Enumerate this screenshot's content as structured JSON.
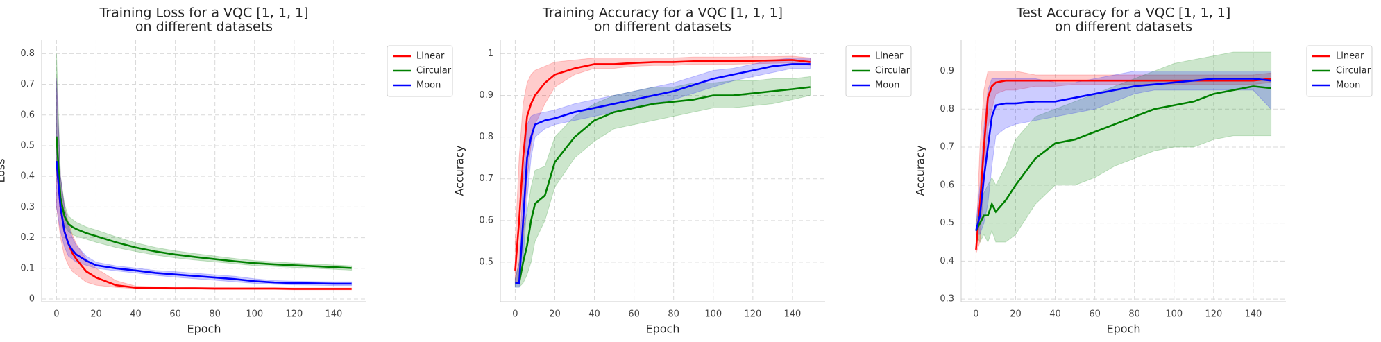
{
  "chart_data": [
    {
      "type": "line",
      "title": [
        "Training Loss for a VQC [1, 1, 1]",
        "on different datasets"
      ],
      "xlabel": "Epoch",
      "ylabel": "Loss",
      "x": [
        0,
        2,
        4,
        6,
        8,
        10,
        15,
        20,
        30,
        40,
        50,
        60,
        70,
        80,
        90,
        100,
        110,
        120,
        130,
        140,
        149
      ],
      "xlim": [
        -7.5,
        156.5
      ],
      "xticks": [
        0,
        20,
        40,
        60,
        80,
        100,
        120,
        140
      ],
      "ylim": [
        -0.009,
        0.846
      ],
      "yticks": [
        0.0,
        0.1,
        0.2,
        0.3,
        0.4,
        0.5,
        0.6,
        0.7,
        0.8
      ],
      "grid": true,
      "legend": "outside",
      "series": [
        {
          "name": "Linear",
          "color": "#ff0000",
          "values": [
            0.45,
            0.3,
            0.22,
            0.18,
            0.15,
            0.13,
            0.09,
            0.07,
            0.045,
            0.037,
            0.036,
            0.035,
            0.035,
            0.034,
            0.034,
            0.034,
            0.034,
            0.033,
            0.033,
            0.033,
            0.033
          ],
          "lower": [
            0.3,
            0.2,
            0.14,
            0.11,
            0.09,
            0.08,
            0.055,
            0.045,
            0.038,
            0.034,
            0.033,
            0.032,
            0.032,
            0.031,
            0.031,
            0.031,
            0.031,
            0.03,
            0.03,
            0.03,
            0.03
          ],
          "upper": [
            0.72,
            0.4,
            0.3,
            0.25,
            0.21,
            0.18,
            0.13,
            0.1,
            0.06,
            0.042,
            0.04,
            0.039,
            0.038,
            0.038,
            0.037,
            0.037,
            0.037,
            0.036,
            0.036,
            0.036,
            0.036
          ]
        },
        {
          "name": "Circular",
          "color": "#008000",
          "values": [
            0.53,
            0.33,
            0.27,
            0.245,
            0.235,
            0.228,
            0.215,
            0.205,
            0.185,
            0.168,
            0.155,
            0.145,
            0.137,
            0.13,
            0.123,
            0.117,
            0.113,
            0.11,
            0.107,
            0.104,
            0.101
          ],
          "lower": [
            0.45,
            0.28,
            0.24,
            0.22,
            0.21,
            0.205,
            0.195,
            0.185,
            0.168,
            0.155,
            0.143,
            0.134,
            0.127,
            0.121,
            0.115,
            0.109,
            0.106,
            0.103,
            0.1,
            0.097,
            0.094
          ],
          "upper": [
            0.8,
            0.4,
            0.31,
            0.27,
            0.26,
            0.25,
            0.235,
            0.225,
            0.203,
            0.183,
            0.168,
            0.157,
            0.148,
            0.14,
            0.132,
            0.125,
            0.121,
            0.117,
            0.114,
            0.111,
            0.108
          ]
        },
        {
          "name": "Moon",
          "color": "#0000ff",
          "values": [
            0.45,
            0.3,
            0.22,
            0.18,
            0.16,
            0.145,
            0.125,
            0.11,
            0.1,
            0.093,
            0.085,
            0.08,
            0.075,
            0.07,
            0.065,
            0.058,
            0.054,
            0.052,
            0.051,
            0.05,
            0.05
          ],
          "lower": [
            0.3,
            0.22,
            0.17,
            0.14,
            0.13,
            0.12,
            0.11,
            0.1,
            0.092,
            0.085,
            0.077,
            0.071,
            0.066,
            0.061,
            0.056,
            0.051,
            0.048,
            0.046,
            0.045,
            0.044,
            0.044
          ],
          "upper": [
            0.72,
            0.4,
            0.3,
            0.24,
            0.2,
            0.175,
            0.14,
            0.12,
            0.108,
            0.101,
            0.093,
            0.089,
            0.084,
            0.079,
            0.074,
            0.066,
            0.06,
            0.058,
            0.057,
            0.056,
            0.056
          ]
        }
      ]
    },
    {
      "type": "line",
      "title": [
        "Training Accuracy for a VQC [1, 1, 1]",
        "on different datasets"
      ],
      "xlabel": "Epoch",
      "ylabel": "Accuracy",
      "x": [
        0,
        2,
        4,
        6,
        8,
        10,
        15,
        20,
        30,
        40,
        50,
        60,
        70,
        80,
        90,
        100,
        110,
        120,
        130,
        140,
        149
      ],
      "xlim": [
        -7.5,
        156.5
      ],
      "xticks": [
        0,
        20,
        40,
        60,
        80,
        100,
        120,
        140
      ],
      "ylim": [
        0.405,
        1.034
      ],
      "yticks": [
        0.5,
        0.6,
        0.7,
        0.8,
        0.9,
        1.0
      ],
      "grid": true,
      "legend": "outside",
      "series": [
        {
          "name": "Linear",
          "color": "#ff0000",
          "values": [
            0.48,
            0.6,
            0.75,
            0.85,
            0.88,
            0.9,
            0.93,
            0.95,
            0.965,
            0.975,
            0.975,
            0.978,
            0.98,
            0.98,
            0.982,
            0.982,
            0.983,
            0.983,
            0.984,
            0.985,
            0.98
          ],
          "lower": [
            0.45,
            0.45,
            0.55,
            0.7,
            0.78,
            0.83,
            0.88,
            0.92,
            0.95,
            0.965,
            0.965,
            0.97,
            0.972,
            0.972,
            0.975,
            0.975,
            0.975,
            0.976,
            0.977,
            0.978,
            0.972
          ],
          "upper": [
            0.55,
            0.75,
            0.88,
            0.93,
            0.95,
            0.96,
            0.97,
            0.98,
            0.985,
            0.99,
            0.99,
            0.99,
            0.99,
            0.99,
            0.992,
            0.992,
            0.992,
            0.993,
            0.993,
            0.994,
            0.99
          ]
        },
        {
          "name": "Circular",
          "color": "#008000",
          "values": [
            0.45,
            0.45,
            0.5,
            0.54,
            0.6,
            0.64,
            0.66,
            0.74,
            0.8,
            0.84,
            0.86,
            0.87,
            0.88,
            0.885,
            0.89,
            0.9,
            0.9,
            0.905,
            0.91,
            0.915,
            0.92
          ],
          "lower": [
            0.44,
            0.44,
            0.45,
            0.47,
            0.5,
            0.55,
            0.6,
            0.68,
            0.75,
            0.79,
            0.82,
            0.83,
            0.84,
            0.85,
            0.86,
            0.87,
            0.87,
            0.875,
            0.88,
            0.89,
            0.9
          ],
          "upper": [
            0.46,
            0.5,
            0.58,
            0.62,
            0.68,
            0.72,
            0.73,
            0.8,
            0.85,
            0.88,
            0.9,
            0.91,
            0.92,
            0.92,
            0.93,
            0.93,
            0.935,
            0.935,
            0.94,
            0.94,
            0.945
          ]
        },
        {
          "name": "Moon",
          "color": "#0000ff",
          "values": [
            0.45,
            0.45,
            0.6,
            0.75,
            0.8,
            0.83,
            0.84,
            0.845,
            0.86,
            0.87,
            0.88,
            0.89,
            0.9,
            0.91,
            0.925,
            0.94,
            0.95,
            0.96,
            0.97,
            0.975,
            0.975
          ],
          "lower": [
            0.44,
            0.44,
            0.5,
            0.65,
            0.75,
            0.8,
            0.82,
            0.83,
            0.84,
            0.85,
            0.86,
            0.87,
            0.88,
            0.89,
            0.905,
            0.92,
            0.935,
            0.945,
            0.955,
            0.965,
            0.965
          ],
          "upper": [
            0.46,
            0.5,
            0.7,
            0.83,
            0.85,
            0.855,
            0.86,
            0.865,
            0.88,
            0.89,
            0.9,
            0.91,
            0.92,
            0.93,
            0.945,
            0.96,
            0.965,
            0.975,
            0.985,
            0.99,
            0.99
          ]
        }
      ]
    },
    {
      "type": "line",
      "title": [
        "Test Accuracy for a VQC [1, 1, 1]",
        "on different datasets"
      ],
      "xlabel": "Epoch",
      "ylabel": "Accuracy",
      "x": [
        0,
        2,
        4,
        6,
        8,
        10,
        15,
        20,
        30,
        40,
        50,
        60,
        70,
        80,
        90,
        100,
        110,
        120,
        130,
        140,
        149
      ],
      "xlim": [
        -7.5,
        156.5
      ],
      "xticks": [
        0,
        20,
        40,
        60,
        80,
        100,
        120,
        140
      ],
      "ylim": [
        0.293,
        0.983
      ],
      "yticks": [
        0.3,
        0.4,
        0.5,
        0.6,
        0.7,
        0.8,
        0.9
      ],
      "grid": true,
      "legend": "outside",
      "series": [
        {
          "name": "Linear",
          "color": "#ff0000",
          "values": [
            0.43,
            0.55,
            0.7,
            0.83,
            0.86,
            0.87,
            0.875,
            0.875,
            0.875,
            0.875,
            0.875,
            0.875,
            0.875,
            0.875,
            0.875,
            0.875,
            0.875,
            0.875,
            0.875,
            0.875,
            0.88
          ],
          "lower": [
            0.42,
            0.45,
            0.6,
            0.75,
            0.8,
            0.84,
            0.85,
            0.85,
            0.86,
            0.86,
            0.865,
            0.865,
            0.865,
            0.865,
            0.865,
            0.865,
            0.865,
            0.865,
            0.865,
            0.865,
            0.87
          ],
          "upper": [
            0.45,
            0.7,
            0.85,
            0.9,
            0.9,
            0.9,
            0.9,
            0.9,
            0.89,
            0.89,
            0.89,
            0.89,
            0.89,
            0.89,
            0.89,
            0.89,
            0.89,
            0.89,
            0.89,
            0.89,
            0.895
          ]
        },
        {
          "name": "Circular",
          "color": "#008000",
          "values": [
            0.48,
            0.5,
            0.52,
            0.52,
            0.55,
            0.53,
            0.56,
            0.6,
            0.67,
            0.71,
            0.72,
            0.74,
            0.76,
            0.78,
            0.8,
            0.81,
            0.82,
            0.84,
            0.85,
            0.86,
            0.855
          ],
          "lower": [
            0.47,
            0.45,
            0.47,
            0.45,
            0.48,
            0.45,
            0.45,
            0.47,
            0.55,
            0.6,
            0.6,
            0.62,
            0.65,
            0.67,
            0.69,
            0.7,
            0.7,
            0.72,
            0.73,
            0.73,
            0.73
          ],
          "upper": [
            0.5,
            0.55,
            0.58,
            0.6,
            0.62,
            0.6,
            0.65,
            0.72,
            0.78,
            0.8,
            0.82,
            0.84,
            0.86,
            0.88,
            0.9,
            0.92,
            0.93,
            0.94,
            0.95,
            0.95,
            0.95
          ]
        },
        {
          "name": "Moon",
          "color": "#0000ff",
          "values": [
            0.48,
            0.52,
            0.62,
            0.7,
            0.78,
            0.81,
            0.815,
            0.815,
            0.82,
            0.82,
            0.83,
            0.84,
            0.85,
            0.86,
            0.865,
            0.87,
            0.875,
            0.88,
            0.88,
            0.88,
            0.875
          ],
          "lower": [
            0.47,
            0.47,
            0.5,
            0.55,
            0.65,
            0.73,
            0.75,
            0.76,
            0.77,
            0.78,
            0.79,
            0.8,
            0.82,
            0.84,
            0.85,
            0.85,
            0.85,
            0.85,
            0.85,
            0.85,
            0.8
          ],
          "upper": [
            0.5,
            0.6,
            0.75,
            0.85,
            0.88,
            0.88,
            0.88,
            0.88,
            0.88,
            0.87,
            0.87,
            0.88,
            0.89,
            0.9,
            0.9,
            0.9,
            0.9,
            0.9,
            0.9,
            0.9,
            0.9
          ]
        }
      ]
    }
  ]
}
